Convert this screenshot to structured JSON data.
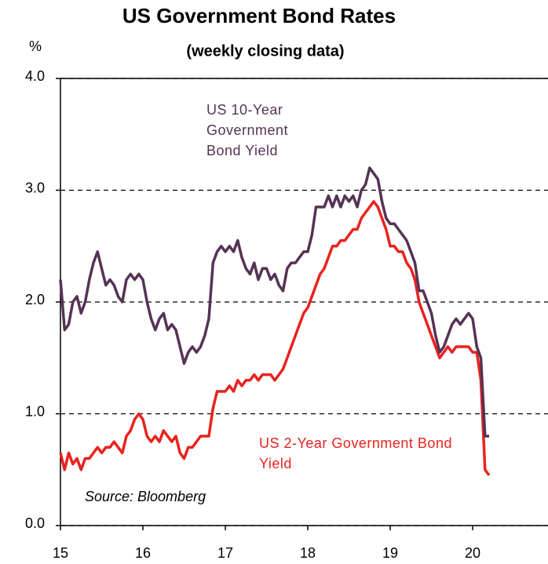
{
  "chart_data": {
    "type": "line",
    "title": "US Government Bond Rates",
    "subtitle": "(weekly closing data)",
    "ylabel": "%",
    "annotations": [
      "Source: Bloomberg"
    ],
    "x": [
      15.0,
      15.05,
      15.1,
      15.15,
      15.2,
      15.25,
      15.3,
      15.35,
      15.4,
      15.45,
      15.5,
      15.55,
      15.6,
      15.65,
      15.7,
      15.75,
      15.8,
      15.85,
      15.9,
      15.95,
      16.0,
      16.05,
      16.1,
      16.15,
      16.2,
      16.25,
      16.3,
      16.35,
      16.4,
      16.45,
      16.5,
      16.55,
      16.6,
      16.65,
      16.7,
      16.75,
      16.8,
      16.85,
      16.9,
      16.95,
      17.0,
      17.05,
      17.1,
      17.15,
      17.2,
      17.25,
      17.3,
      17.35,
      17.4,
      17.45,
      17.5,
      17.55,
      17.6,
      17.65,
      17.7,
      17.75,
      17.8,
      17.85,
      17.9,
      17.95,
      18.0,
      18.05,
      18.1,
      18.15,
      18.2,
      18.25,
      18.3,
      18.35,
      18.4,
      18.45,
      18.5,
      18.55,
      18.6,
      18.65,
      18.7,
      18.75,
      18.8,
      18.85,
      18.9,
      18.95,
      19.0,
      19.05,
      19.1,
      19.15,
      19.2,
      19.25,
      19.3,
      19.35,
      19.4,
      19.45,
      19.5,
      19.55,
      19.6,
      19.65,
      19.7,
      19.75,
      19.8,
      19.85,
      19.9,
      19.95,
      20.0,
      20.05,
      20.1,
      20.15,
      20.2
    ],
    "series": [
      {
        "name": "US 10-Year Government Bond Yield",
        "color": "#553355",
        "values": [
          2.2,
          1.75,
          1.8,
          2.0,
          2.05,
          1.9,
          2.0,
          2.2,
          2.35,
          2.45,
          2.3,
          2.15,
          2.2,
          2.15,
          2.05,
          2.0,
          2.2,
          2.25,
          2.2,
          2.25,
          2.2,
          2.0,
          1.85,
          1.75,
          1.85,
          1.9,
          1.75,
          1.8,
          1.75,
          1.6,
          1.45,
          1.55,
          1.6,
          1.55,
          1.6,
          1.7,
          1.85,
          2.35,
          2.45,
          2.5,
          2.45,
          2.5,
          2.45,
          2.55,
          2.4,
          2.3,
          2.25,
          2.35,
          2.2,
          2.3,
          2.3,
          2.2,
          2.25,
          2.15,
          2.1,
          2.3,
          2.35,
          2.35,
          2.4,
          2.45,
          2.45,
          2.6,
          2.85,
          2.85,
          2.85,
          2.95,
          2.85,
          2.95,
          2.85,
          2.95,
          2.9,
          2.95,
          2.85,
          3.0,
          3.05,
          3.2,
          3.15,
          3.1,
          2.9,
          2.75,
          2.7,
          2.7,
          2.65,
          2.6,
          2.55,
          2.45,
          2.35,
          2.1,
          2.1,
          2.0,
          1.9,
          1.7,
          1.55,
          1.6,
          1.7,
          1.8,
          1.85,
          1.8,
          1.85,
          1.9,
          1.85,
          1.6,
          1.5,
          0.8,
          0.8
        ]
      },
      {
        "name": "US 2-Year  Government Bond Yield",
        "color": "#e8231f",
        "values": [
          0.65,
          0.5,
          0.65,
          0.55,
          0.6,
          0.5,
          0.6,
          0.6,
          0.65,
          0.7,
          0.65,
          0.7,
          0.7,
          0.75,
          0.7,
          0.65,
          0.8,
          0.85,
          0.95,
          1.0,
          0.95,
          0.8,
          0.75,
          0.8,
          0.75,
          0.85,
          0.8,
          0.75,
          0.8,
          0.65,
          0.6,
          0.7,
          0.7,
          0.75,
          0.8,
          0.8,
          0.8,
          1.05,
          1.2,
          1.2,
          1.2,
          1.25,
          1.2,
          1.3,
          1.25,
          1.3,
          1.3,
          1.35,
          1.3,
          1.35,
          1.35,
          1.35,
          1.3,
          1.35,
          1.4,
          1.5,
          1.6,
          1.7,
          1.8,
          1.9,
          1.95,
          2.05,
          2.15,
          2.25,
          2.3,
          2.4,
          2.5,
          2.5,
          2.55,
          2.55,
          2.6,
          2.65,
          2.65,
          2.75,
          2.8,
          2.85,
          2.9,
          2.85,
          2.75,
          2.65,
          2.5,
          2.5,
          2.45,
          2.45,
          2.35,
          2.3,
          2.2,
          2.0,
          1.9,
          1.8,
          1.7,
          1.6,
          1.5,
          1.55,
          1.6,
          1.55,
          1.6,
          1.6,
          1.6,
          1.6,
          1.55,
          1.55,
          1.3,
          0.5,
          0.45
        ]
      }
    ],
    "xlim": [
      15,
      20.914
    ],
    "xticks": [
      15,
      16,
      17,
      18,
      19,
      20
    ],
    "ylim": [
      0,
      4
    ],
    "yticks": [
      {
        "value": 0,
        "label": "0.0"
      },
      {
        "value": 1,
        "label": "1.0"
      },
      {
        "value": 2,
        "label": "2.0"
      },
      {
        "value": 3,
        "label": "3.0"
      },
      {
        "value": 4,
        "label": "4.0"
      }
    ],
    "grid": true
  }
}
